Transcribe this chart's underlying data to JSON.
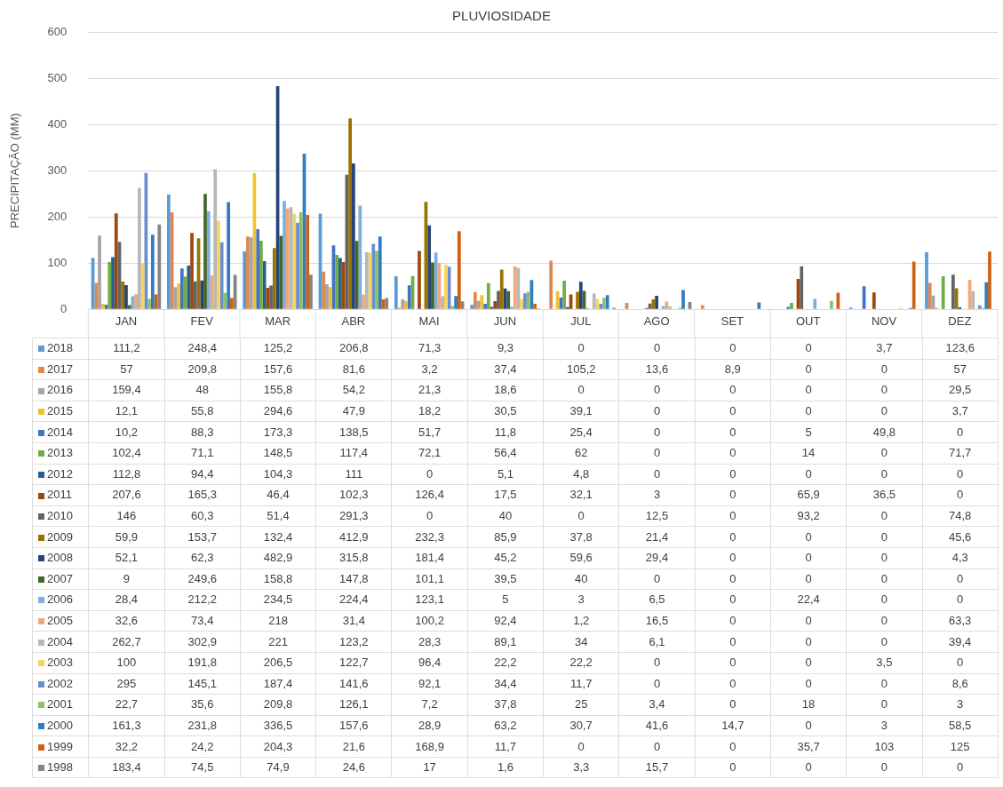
{
  "chart_data": {
    "type": "bar",
    "title": "PLUVIOSIDADE",
    "ylabel": "PRECIPITAÇÃO (MM)",
    "categories": [
      "JAN",
      "FEV",
      "MAR",
      "ABR",
      "MAI",
      "JUN",
      "JUL",
      "AGO",
      "SET",
      "OUT",
      "NOV",
      "DEZ"
    ],
    "ylim": [
      0,
      600
    ],
    "yticks": [
      0,
      100,
      200,
      300,
      400,
      500,
      600
    ],
    "grid": "y",
    "legend": "bottom",
    "series": [
      {
        "name": "2018",
        "color": "#5b9bd5",
        "values": [
          111.2,
          248.4,
          125.2,
          206.8,
          71.3,
          9.3,
          0,
          0,
          0,
          0,
          3.7,
          123.6
        ],
        "value_labels": [
          "111,2",
          "248,4",
          "125,2",
          "206,8",
          "71,3",
          "9,3",
          "0",
          "0",
          "0",
          "0",
          "3,7",
          "123,6"
        ]
      },
      {
        "name": "2017",
        "color": "#e0894e",
        "values": [
          57,
          209.8,
          157.6,
          81.6,
          3.2,
          37.4,
          105.2,
          13.6,
          8.9,
          0,
          0,
          57
        ],
        "value_labels": [
          "57",
          "209,8",
          "157,6",
          "81,6",
          "3,2",
          "37,4",
          "105,2",
          "13,6",
          "8,9",
          "0",
          "0",
          "57"
        ]
      },
      {
        "name": "2016",
        "color": "#a5a5a5",
        "values": [
          159.4,
          48,
          155.8,
          54.2,
          21.3,
          18.6,
          0,
          0,
          0,
          0,
          0,
          29.5
        ],
        "value_labels": [
          "159,4",
          "48",
          "155,8",
          "54,2",
          "21,3",
          "18,6",
          "0",
          "0",
          "0",
          "0",
          "0",
          "29,5"
        ]
      },
      {
        "name": "2015",
        "color": "#f2c12e",
        "values": [
          12.1,
          55.8,
          294.6,
          47.9,
          18.2,
          30.5,
          39.1,
          0,
          0,
          0,
          0,
          3.7
        ],
        "value_labels": [
          "12,1",
          "55,8",
          "294,6",
          "47,9",
          "18,2",
          "30,5",
          "39,1",
          "0",
          "0",
          "0",
          "0",
          "3,7"
        ]
      },
      {
        "name": "2014",
        "color": "#4472c4",
        "values": [
          10.2,
          88.3,
          173.3,
          138.5,
          51.7,
          11.8,
          25.4,
          0,
          0,
          5,
          49.8,
          0
        ],
        "value_labels": [
          "10,2",
          "88,3",
          "173,3",
          "138,5",
          "51,7",
          "11,8",
          "25,4",
          "0",
          "0",
          "5",
          "49,8",
          "0"
        ]
      },
      {
        "name": "2013",
        "color": "#70ad47",
        "values": [
          102.4,
          71.1,
          148.5,
          117.4,
          72.1,
          56.4,
          62,
          0,
          0,
          14,
          0,
          71.7
        ],
        "value_labels": [
          "102,4",
          "71,1",
          "148,5",
          "117,4",
          "72,1",
          "56,4",
          "62",
          "0",
          "0",
          "14",
          "0",
          "71,7"
        ]
      },
      {
        "name": "2012",
        "color": "#255e91",
        "values": [
          112.8,
          94.4,
          104.3,
          111,
          0,
          5.1,
          4.8,
          0,
          0,
          0,
          0,
          0
        ],
        "value_labels": [
          "112,8",
          "94,4",
          "104,3",
          "111",
          "0",
          "5,1",
          "4,8",
          "0",
          "0",
          "0",
          "0",
          "0"
        ]
      },
      {
        "name": "2011",
        "color": "#9e480e",
        "values": [
          207.6,
          165.3,
          46.4,
          102.3,
          126.4,
          17.5,
          32.1,
          3,
          0,
          65.9,
          36.5,
          0
        ],
        "value_labels": [
          "207,6",
          "165,3",
          "46,4",
          "102,3",
          "126,4",
          "17,5",
          "32,1",
          "3",
          "0",
          "65,9",
          "36,5",
          "0"
        ]
      },
      {
        "name": "2010",
        "color": "#636363",
        "values": [
          146,
          60.3,
          51.4,
          291.3,
          0,
          40,
          0,
          12.5,
          0,
          93.2,
          0,
          74.8
        ],
        "value_labels": [
          "146",
          "60,3",
          "51,4",
          "291,3",
          "0",
          "40",
          "0",
          "12,5",
          "0",
          "93,2",
          "0",
          "74,8"
        ]
      },
      {
        "name": "2009",
        "color": "#997300",
        "values": [
          59.9,
          153.7,
          132.4,
          412.9,
          232.3,
          85.9,
          37.8,
          21.4,
          0,
          0,
          0,
          45.6
        ],
        "value_labels": [
          "59,9",
          "153,7",
          "132,4",
          "412,9",
          "232,3",
          "85,9",
          "37,8",
          "21,4",
          "0",
          "0",
          "0",
          "45,6"
        ]
      },
      {
        "name": "2008",
        "color": "#264478",
        "values": [
          52.1,
          62.3,
          482.9,
          315.8,
          181.4,
          45.2,
          59.6,
          29.4,
          0,
          0,
          0,
          4.3
        ],
        "value_labels": [
          "52,1",
          "62,3",
          "482,9",
          "315,8",
          "181,4",
          "45,2",
          "59,6",
          "29,4",
          "0",
          "0",
          "0",
          "4,3"
        ]
      },
      {
        "name": "2007",
        "color": "#43682b",
        "values": [
          9,
          249.6,
          158.8,
          147.8,
          101.1,
          39.5,
          40,
          0,
          0,
          0,
          0,
          0
        ],
        "value_labels": [
          "9",
          "249,6",
          "158,8",
          "147,8",
          "101,1",
          "39,5",
          "40",
          "0",
          "0",
          "0",
          "0",
          "0"
        ]
      },
      {
        "name": "2006",
        "color": "#7cafdd",
        "values": [
          28.4,
          212.2,
          234.5,
          224.4,
          123.1,
          5,
          3,
          6.5,
          0,
          22.4,
          0,
          0
        ],
        "value_labels": [
          "28,4",
          "212,2",
          "234,5",
          "224,4",
          "123,1",
          "5",
          "3",
          "6,5",
          "0",
          "22,4",
          "0",
          "0"
        ]
      },
      {
        "name": "2005",
        "color": "#f1a878",
        "values": [
          32.6,
          73.4,
          218,
          31.4,
          100.2,
          92.4,
          1.2,
          16.5,
          0,
          0,
          0,
          63.3
        ],
        "value_labels": [
          "32,6",
          "73,4",
          "218",
          "31,4",
          "100,2",
          "92,4",
          "1,2",
          "16,5",
          "0",
          "0",
          "0",
          "63,3"
        ]
      },
      {
        "name": "2004",
        "color": "#b7b7b7",
        "values": [
          262.7,
          302.9,
          221,
          123.2,
          28.3,
          89.1,
          34,
          6.1,
          0,
          0,
          0,
          39.4
        ],
        "value_labels": [
          "262,7",
          "302,9",
          "221",
          "123,2",
          "28,3",
          "89,1",
          "34",
          "6,1",
          "0",
          "0",
          "0",
          "39,4"
        ]
      },
      {
        "name": "2003",
        "color": "#f7d55c",
        "values": [
          100,
          191.8,
          206.5,
          122.7,
          96.4,
          22.2,
          22.2,
          0,
          0,
          0,
          3.5,
          0
        ],
        "value_labels": [
          "100",
          "191,8",
          "206,5",
          "122,7",
          "96,4",
          "22,2",
          "22,2",
          "0",
          "0",
          "0",
          "3,5",
          "0"
        ]
      },
      {
        "name": "2002",
        "color": "#698ed0",
        "values": [
          295,
          145.1,
          187.4,
          141.6,
          92.1,
          34.4,
          11.7,
          0,
          0,
          0,
          0,
          8.6
        ],
        "value_labels": [
          "295",
          "145,1",
          "187,4",
          "141,6",
          "92,1",
          "34,4",
          "11,7",
          "0",
          "0",
          "0",
          "0",
          "8,6"
        ]
      },
      {
        "name": "2001",
        "color": "#8cc168",
        "values": [
          22.7,
          35.6,
          209.8,
          126.1,
          7.2,
          37.8,
          25,
          3.4,
          0,
          18,
          0,
          3
        ],
        "value_labels": [
          "22,7",
          "35,6",
          "209,8",
          "126,1",
          "7,2",
          "37,8",
          "25",
          "3,4",
          "0",
          "18",
          "0",
          "3"
        ]
      },
      {
        "name": "2000",
        "color": "#327dc2",
        "values": [
          161.3,
          231.8,
          336.5,
          157.6,
          28.9,
          63.2,
          30.7,
          41.6,
          14.7,
          0,
          3,
          58.5
        ],
        "value_labels": [
          "161,3",
          "231,8",
          "336,5",
          "157,6",
          "28,9",
          "63,2",
          "30,7",
          "41,6",
          "14,7",
          "0",
          "3",
          "58,5"
        ]
      },
      {
        "name": "1999",
        "color": "#d26012",
        "values": [
          32.2,
          24.2,
          204.3,
          21.6,
          168.9,
          11.7,
          0,
          0,
          0,
          35.7,
          103,
          125
        ],
        "value_labels": [
          "32,2",
          "24,2",
          "204,3",
          "21,6",
          "168,9",
          "11,7",
          "0",
          "0",
          "0",
          "35,7",
          "103",
          "125"
        ]
      },
      {
        "name": "1998",
        "color": "#848484",
        "values": [
          183.4,
          74.5,
          74.9,
          24.6,
          17,
          1.6,
          3.3,
          15.7,
          0,
          0,
          0,
          0
        ],
        "value_labels": [
          "183,4",
          "74,5",
          "74,9",
          "24,6",
          "17",
          "1,6",
          "3,3",
          "15,7",
          "0",
          "0",
          "0",
          "0"
        ]
      }
    ]
  }
}
